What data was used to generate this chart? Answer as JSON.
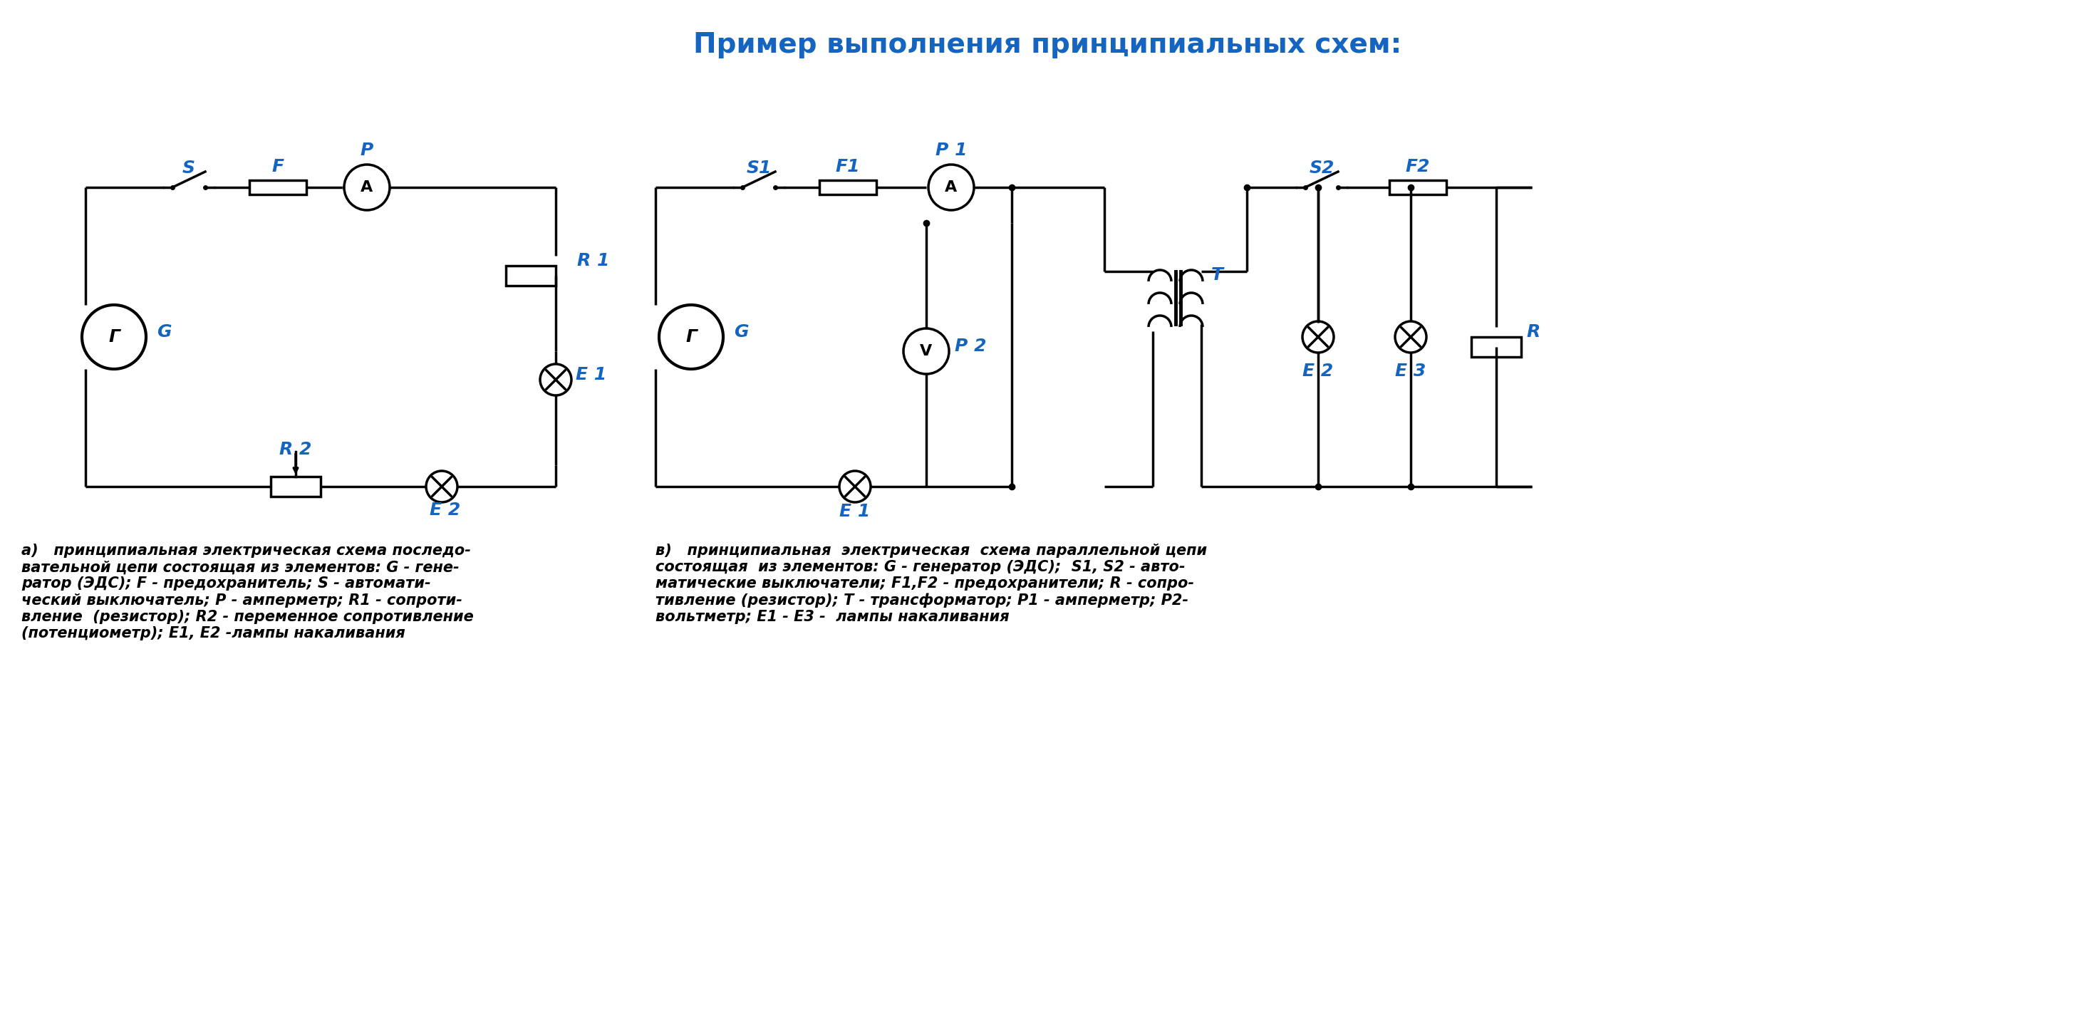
{
  "title": "Пример выполнения принципиальных схем:",
  "title_color": "#1565C0",
  "title_fontsize": 28,
  "label_color": "#1565C0",
  "line_color": "#000000",
  "bg_color": "#ffffff",
  "caption_a": "а)   принципиальная электрическая схема последо-\nвательной цепи состоящая из элементов: G - гене-\nратор (ЭДС); F - предохранитель; S - автомати-\nческий выключатель; P - амперметр; R1 - сопроти-\nвление  (резистор); R2 - переменное сопротивление\n(потенциометр); E1, E2 -лампы накаливания",
  "caption_b": "в)   принципиальная  электрическая  схема параллельной цепи\nсостоящая  из элементов: G - генератор (ЭДС);  S1, S2 - авто-\nматические выключатели; F1,F2 - предохранители; R - сопро-\nтивление (резистор); T - трансформатор; P1 - амперметр; P2-\nвольтметр; E1 - E3 -  лампы накаливания"
}
